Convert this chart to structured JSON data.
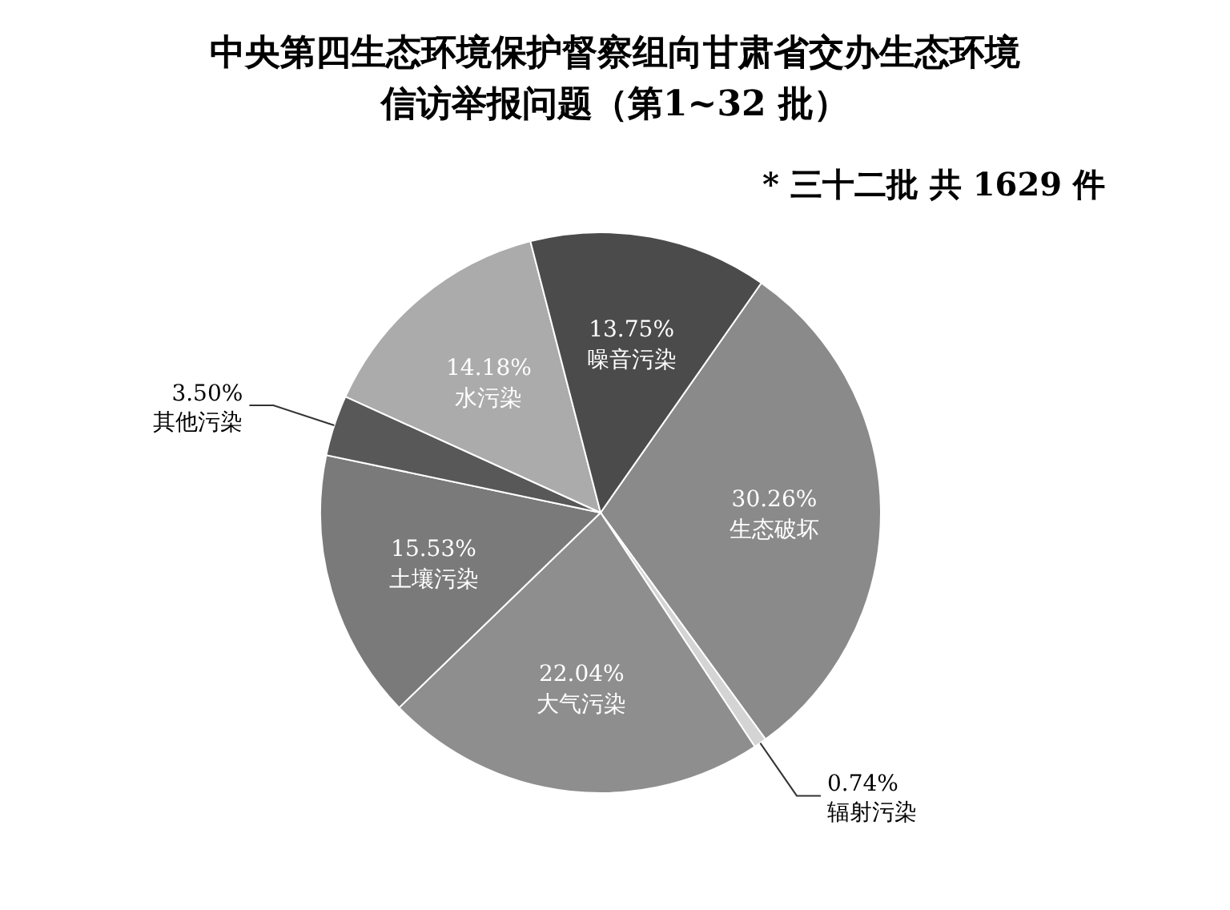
{
  "chart_data": {
    "type": "pie",
    "title": "中央第四生态环境保护督察组向甘肃省交办生态环境信访举报问题（第1~32 批）",
    "categories": [
      "生态破坏",
      "辐射污染",
      "大气污染",
      "土壤污染",
      "其他污染",
      "水污染",
      "噪音污染"
    ],
    "values": [
      30.26,
      0.74,
      22.04,
      15.53,
      3.5,
      14.18,
      13.75
    ],
    "value_labels": [
      "30.26%",
      "0.74%",
      "22.04%",
      "15.53%",
      "3.50%",
      "14.18%",
      "13.75%"
    ],
    "colors": [
      "#8a8a8a",
      "#d4d4d4",
      "#8e8e8e",
      "#7a7a7a",
      "#585858",
      "#ababab",
      "#4b4b4b"
    ],
    "annotations": [
      "* 三十二批 共 1629 件"
    ]
  }
}
